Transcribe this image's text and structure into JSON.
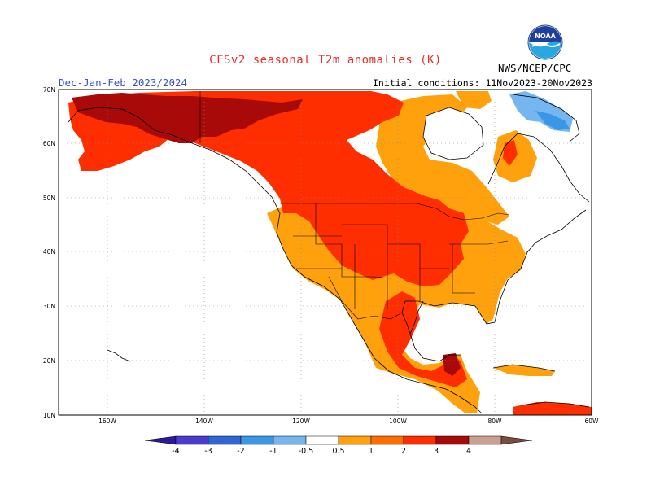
{
  "header": {
    "title": "CFSv2 seasonal T2m anomalies (K)",
    "period": "Dec-Jan-Feb 2023/2024",
    "initial_conditions": "Initial conditions: 11Nov2023-20Nov2023",
    "agency": "NWS/NCEP/CPC",
    "logo_text": "NOAA"
  },
  "map": {
    "lat_labels": [
      "70N",
      "60N",
      "50N",
      "40N",
      "30N",
      "20N",
      "10N"
    ],
    "lon_labels": [
      "160W",
      "140W",
      "120W",
      "100W",
      "80W",
      "60W"
    ],
    "region": "North America",
    "lon_range": [
      -170,
      -60
    ],
    "lat_range": [
      10,
      70
    ]
  },
  "colorbar": {
    "boundary_labels": [
      "-4",
      "-3",
      "-2",
      "-1",
      "-0.5",
      "0.5",
      "1",
      "2",
      "3",
      "4"
    ],
    "colors": [
      "#2a1a9a",
      "#4a3ad0",
      "#2f66d6",
      "#3a96e6",
      "#76b6f0",
      "#ffffff",
      "#ffa10d",
      "#ff6c00",
      "#ff2e00",
      "#a80a0a",
      "#c9a092",
      "#7a4c40"
    ]
  },
  "anomaly_fields": {
    "warm_05_1": "Alaska coast, Canadian Arctic archipelago edge, Quebec/Labrador, Texas/Gulf coast, southeastern US, Mexico",
    "warm_1_2": "western and central Canada, northern and central US, Great Lakes",
    "warm_2_3": "northern Alaska, Brooks Range, southern Mexico",
    "cool_neg05_neg1": "Baffin Island / southern Greenland edge",
    "neutral": "Hudson Bay, Atlantic provinces, Pacific Ocean, Atlantic Ocean"
  }
}
